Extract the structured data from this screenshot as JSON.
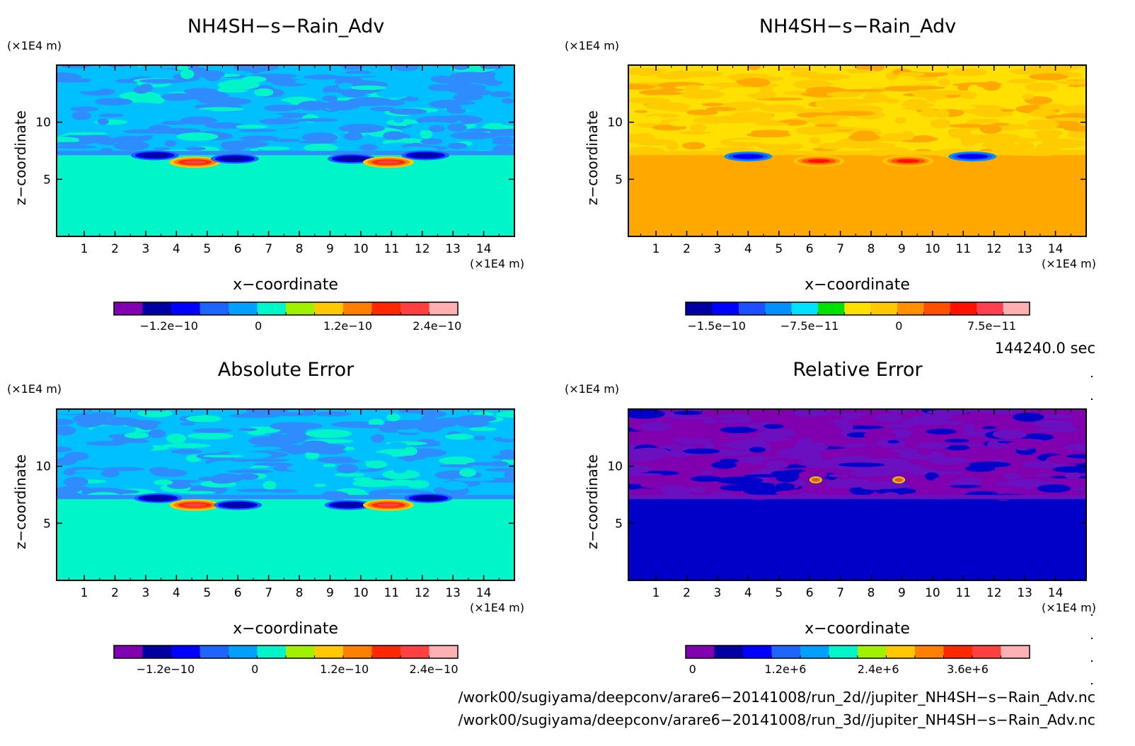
{
  "panels": [
    {
      "title": "NH4SH−s−Rain_Adv",
      "unit_z": "(×1E4 m)",
      "unit_x": "(×1E4 m)",
      "xlabel": "x−coordinate",
      "ylabel": "z−coordinate",
      "colorbar_labels": [
        "−1.2e−10",
        "0",
        "1.2e−10",
        "2.4e−10"
      ],
      "background_color": "#00f5c8",
      "band_colors": [
        "#00c0ff",
        "#2e8cff"
      ]
    },
    {
      "title": "NH4SH−s−Rain_Adv",
      "unit_z": "(×1E4 m)",
      "unit_x": "(×1E4 m)",
      "xlabel": "x−coordinate",
      "ylabel": "z−coordinate",
      "colorbar_labels": [
        "−1.5e−10",
        "−7.5e−11",
        "0",
        "7.5e−11"
      ],
      "background_color": "#ffa800",
      "band_colors": [
        "#ffe000",
        "#ffcc00"
      ]
    },
    {
      "title": "Absolute Error",
      "unit_z": "(×1E4 m)",
      "unit_x": "(×1E4 m)",
      "xlabel": "x−coordinate",
      "ylabel": "z−coordinate",
      "colorbar_labels": [
        "−1.2e−10",
        "0",
        "1.2e−10",
        "2.4e−10"
      ],
      "background_color": "#00f5c8",
      "band_colors": [
        "#00c0ff",
        "#2e8cff"
      ]
    },
    {
      "title": "Relative Error",
      "unit_z": "(×1E4 m)",
      "unit_x": "(×1E4 m)",
      "xlabel": "x−coordinate",
      "ylabel": "z−coordinate",
      "colorbar_labels": [
        "0",
        "1.2e+6",
        "2.4e+6",
        "3.6e+6"
      ],
      "background_color": "#0000c8",
      "band_colors": [
        "#8000b0",
        "#6a10c0"
      ]
    }
  ],
  "time_label": "144240.0 sec",
  "file_paths": [
    "/work00/sugiyama/deepconv/arare6−20141008/run_2d//jupiter_NH4SH−s−Rain_Adv.nc",
    "/work00/sugiyama/deepconv/arare6−20141008/run_3d//jupiter_NH4SH−s−Rain_Adv.nc"
  ],
  "chart_data": [
    {
      "type": "heatmap",
      "title": "NH4SH−s−Rain_Adv",
      "xlabel": "x−coordinate",
      "ylabel": "z−coordinate",
      "x_unit": "(×1E4 m)",
      "z_unit": "(×1E4 m)",
      "xlim": [
        0.1,
        15.0
      ],
      "zlim": [
        0.0,
        15.0
      ],
      "x_ticks": [
        1,
        2,
        3,
        4,
        5,
        6,
        7,
        8,
        9,
        10,
        11,
        12,
        13,
        14
      ],
      "z_ticks": [
        5,
        10
      ],
      "colorbar": {
        "tick_labels": [
          "−1.2e−10",
          "0",
          "1.2e−10",
          "2.4e−10"
        ],
        "colors": [
          "#8000b0",
          "#0000a0",
          "#0000ff",
          "#1e64ff",
          "#00a0ff",
          "#00f5c8",
          "#a0f000",
          "#ffc800",
          "#ff8000",
          "#ff2800",
          "#ff4040",
          "#ffb0b0"
        ]
      },
      "features": [
        {
          "x": 3.3,
          "z": 7.1,
          "value": -1.2e-10
        },
        {
          "x": 4.6,
          "z": 6.5,
          "value": 2.4e-10
        },
        {
          "x": 5.9,
          "z": 6.8,
          "value": -1.2e-10
        },
        {
          "x": 9.7,
          "z": 6.8,
          "value": -1.2e-10
        },
        {
          "x": 10.9,
          "z": 6.5,
          "value": 2.4e-10
        },
        {
          "x": 12.1,
          "z": 7.1,
          "value": -1.2e-10
        }
      ],
      "grid": false
    },
    {
      "type": "heatmap",
      "title": "NH4SH−s−Rain_Adv",
      "xlabel": "x−coordinate",
      "ylabel": "z−coordinate",
      "x_unit": "(×1E4 m)",
      "z_unit": "(×1E4 m)",
      "xlim": [
        0.1,
        15.0
      ],
      "zlim": [
        0.0,
        15.0
      ],
      "x_ticks": [
        1,
        2,
        3,
        4,
        5,
        6,
        7,
        8,
        9,
        10,
        11,
        12,
        13,
        14
      ],
      "z_ticks": [
        5,
        10
      ],
      "colorbar": {
        "tick_labels": [
          "−1.5e−10",
          "−7.5e−11",
          "0",
          "7.5e−11"
        ],
        "colors": [
          "#0000a0",
          "#0000ff",
          "#1e50ff",
          "#0090ff",
          "#00e0ff",
          "#00e000",
          "#ffe000",
          "#ffc800",
          "#ff9000",
          "#ff5000",
          "#ff1000",
          "#ff4050",
          "#ffb0b0"
        ]
      },
      "features": [
        {
          "x": 4.0,
          "z": 7.0,
          "value": -1.5e-10
        },
        {
          "x": 6.3,
          "z": 6.6,
          "value": 7.5e-11
        },
        {
          "x": 9.2,
          "z": 6.6,
          "value": 7.5e-11
        },
        {
          "x": 11.3,
          "z": 7.0,
          "value": -1.5e-10
        }
      ],
      "grid": false
    },
    {
      "type": "heatmap",
      "title": "Absolute Error",
      "xlabel": "x−coordinate",
      "ylabel": "z−coordinate",
      "x_unit": "(×1E4 m)",
      "z_unit": "(×1E4 m)",
      "xlim": [
        0.1,
        15.0
      ],
      "zlim": [
        0.0,
        15.0
      ],
      "x_ticks": [
        1,
        2,
        3,
        4,
        5,
        6,
        7,
        8,
        9,
        10,
        11,
        12,
        13,
        14
      ],
      "z_ticks": [
        5,
        10
      ],
      "colorbar": {
        "tick_labels": [
          "−1.2e−10",
          "0",
          "1.2e−10",
          "2.4e−10"
        ],
        "colors": [
          "#8000b0",
          "#0000a0",
          "#0000ff",
          "#1e64ff",
          "#00a0ff",
          "#00f5c8",
          "#a0f000",
          "#ffc800",
          "#ff8000",
          "#ff2800",
          "#ff4040",
          "#ffb0b0"
        ]
      },
      "features": [
        {
          "x": 3.4,
          "z": 7.2,
          "value": -1.2e-10
        },
        {
          "x": 4.6,
          "z": 6.6,
          "value": 2.4e-10
        },
        {
          "x": 6.0,
          "z": 6.6,
          "value": -1.2e-10
        },
        {
          "x": 9.6,
          "z": 6.6,
          "value": -1.2e-10
        },
        {
          "x": 10.9,
          "z": 6.6,
          "value": 2.4e-10
        },
        {
          "x": 12.2,
          "z": 7.2,
          "value": -1.2e-10
        }
      ],
      "grid": false
    },
    {
      "type": "heatmap",
      "title": "Relative Error",
      "xlabel": "x−coordinate",
      "ylabel": "z−coordinate",
      "x_unit": "(×1E4 m)",
      "z_unit": "(×1E4 m)",
      "xlim": [
        0.1,
        15.0
      ],
      "zlim": [
        0.0,
        15.0
      ],
      "x_ticks": [
        1,
        2,
        3,
        4,
        5,
        6,
        7,
        8,
        9,
        10,
        11,
        12,
        13,
        14
      ],
      "z_ticks": [
        5,
        10
      ],
      "colorbar": {
        "tick_labels": [
          "0",
          "1.2e+6",
          "2.4e+6",
          "3.6e+6"
        ],
        "colors": [
          "#8000b0",
          "#0000a0",
          "#0000ff",
          "#1e64ff",
          "#00a0ff",
          "#00f5c8",
          "#a0f000",
          "#ffc800",
          "#ff8000",
          "#ff2800",
          "#ff4040",
          "#ffb0b0"
        ]
      },
      "features": [
        {
          "x": 6.2,
          "z": 8.8,
          "value": 3600000.0
        },
        {
          "x": 8.9,
          "z": 8.8,
          "value": 3600000.0
        }
      ],
      "grid": false
    }
  ]
}
